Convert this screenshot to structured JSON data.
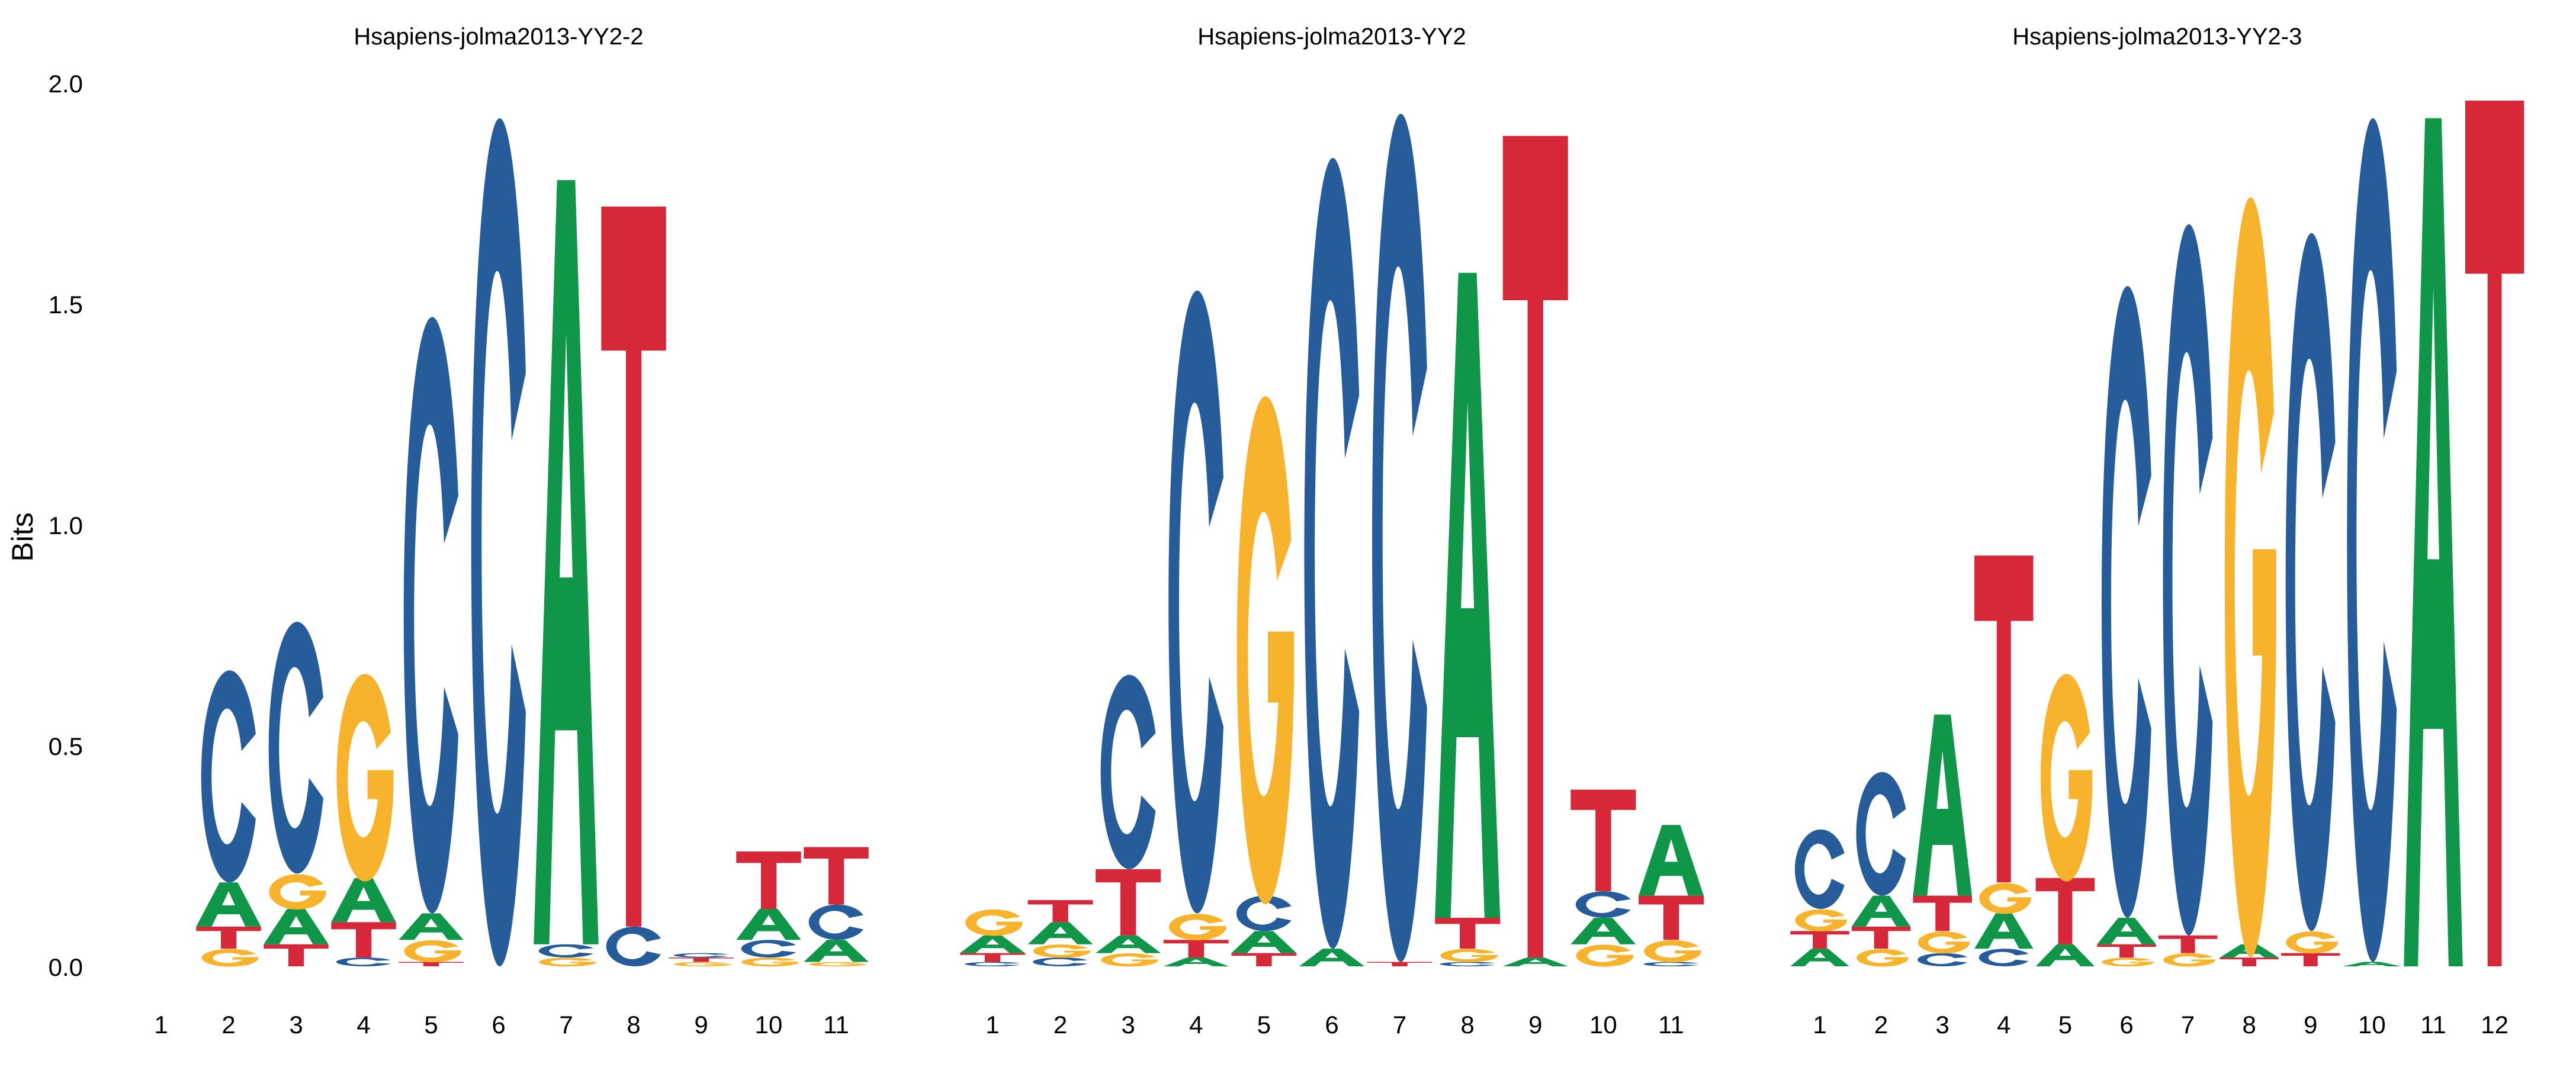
{
  "figure": {
    "ylabel": "Bits",
    "yticks": [
      0,
      0.5,
      1,
      1.5,
      2
    ],
    "ylim": [
      0,
      2
    ]
  },
  "colors": {
    "A": "#109648",
    "C": "#255C99",
    "G": "#F7B32B",
    "T": "#D62839"
  },
  "chart_data": [
    {
      "type": "sequence_logo",
      "title": "Hsapiens-jolma2013-YY2-2",
      "ylabel": "Bits",
      "ylim": [
        0,
        2
      ],
      "positions": [
        1,
        2,
        3,
        4,
        5,
        6,
        7,
        8,
        9,
        10,
        11
      ],
      "stacks": [
        [],
        [
          [
            "G",
            0.04
          ],
          [
            "T",
            0.05
          ],
          [
            "A",
            0.1
          ],
          [
            "C",
            0.48
          ]
        ],
        [
          [
            "T",
            0.05
          ],
          [
            "A",
            0.08
          ],
          [
            "G",
            0.08
          ],
          [
            "C",
            0.57
          ]
        ],
        [
          [
            "C",
            0.02
          ],
          [
            "T",
            0.08
          ],
          [
            "A",
            0.1
          ],
          [
            "G",
            0.47
          ]
        ],
        [
          [
            "T",
            0.01
          ],
          [
            "G",
            0.05
          ],
          [
            "A",
            0.06
          ],
          [
            "C",
            1.35
          ]
        ],
        [
          [
            "C",
            1.92
          ]
        ],
        [
          [
            "G",
            0.02
          ],
          [
            "C",
            0.03
          ],
          [
            "A",
            1.73
          ]
        ],
        [
          [
            "C",
            0.09
          ],
          [
            "T",
            1.63
          ]
        ],
        [
          [
            "G",
            0.01
          ],
          [
            "T",
            0.01
          ],
          [
            "C",
            0.01
          ]
        ],
        [
          [
            "G",
            0.02
          ],
          [
            "C",
            0.04
          ],
          [
            "A",
            0.07
          ],
          [
            "T",
            0.13
          ]
        ],
        [
          [
            "G",
            0.01
          ],
          [
            "A",
            0.05
          ],
          [
            "C",
            0.08
          ],
          [
            "T",
            0.13
          ]
        ]
      ]
    },
    {
      "type": "sequence_logo",
      "title": "Hsapiens-jolma2013-YY2",
      "ylabel": "Bits",
      "ylim": [
        0,
        2
      ],
      "positions": [
        1,
        2,
        3,
        4,
        5,
        6,
        7,
        8,
        9,
        10,
        11
      ],
      "stacks": [
        [
          [
            "C",
            0.01
          ],
          [
            "T",
            0.02
          ],
          [
            "A",
            0.04
          ],
          [
            "G",
            0.06
          ]
        ],
        [
          [
            "C",
            0.02
          ],
          [
            "G",
            0.03
          ],
          [
            "A",
            0.05
          ],
          [
            "T",
            0.05
          ]
        ],
        [
          [
            "G",
            0.03
          ],
          [
            "A",
            0.04
          ],
          [
            "T",
            0.15
          ],
          [
            "C",
            0.44
          ]
        ],
        [
          [
            "A",
            0.02
          ],
          [
            "T",
            0.04
          ],
          [
            "G",
            0.06
          ],
          [
            "C",
            1.41
          ]
        ],
        [
          [
            "T",
            0.03
          ],
          [
            "A",
            0.05
          ],
          [
            "C",
            0.08
          ],
          [
            "G",
            1.15
          ]
        ],
        [
          [
            "A",
            0.04
          ],
          [
            "C",
            1.79
          ]
        ],
        [
          [
            "T",
            0.01
          ],
          [
            "C",
            1.92
          ]
        ],
        [
          [
            "C",
            0.01
          ],
          [
            "G",
            0.03
          ],
          [
            "T",
            0.07
          ],
          [
            "A",
            1.46
          ]
        ],
        [
          [
            "A",
            0.02
          ],
          [
            "T",
            1.86
          ]
        ],
        [
          [
            "G",
            0.05
          ],
          [
            "A",
            0.06
          ],
          [
            "C",
            0.06
          ],
          [
            "T",
            0.23
          ]
        ],
        [
          [
            "C",
            0.01
          ],
          [
            "G",
            0.05
          ],
          [
            "T",
            0.1
          ],
          [
            "A",
            0.16
          ]
        ]
      ]
    },
    {
      "type": "sequence_logo",
      "title": "Hsapiens-jolma2013-YY2-3",
      "ylabel": "Bits",
      "ylim": [
        0,
        2
      ],
      "positions": [
        1,
        2,
        3,
        4,
        5,
        6,
        7,
        8,
        9,
        10,
        11,
        12
      ],
      "stacks": [
        [
          [
            "A",
            0.04
          ],
          [
            "T",
            0.04
          ],
          [
            "G",
            0.05
          ],
          [
            "C",
            0.18
          ]
        ],
        [
          [
            "G",
            0.04
          ],
          [
            "T",
            0.05
          ],
          [
            "A",
            0.07
          ],
          [
            "C",
            0.28
          ]
        ],
        [
          [
            "C",
            0.03
          ],
          [
            "G",
            0.05
          ],
          [
            "T",
            0.08
          ],
          [
            "A",
            0.41
          ]
        ],
        [
          [
            "C",
            0.04
          ],
          [
            "A",
            0.08
          ],
          [
            "G",
            0.07
          ],
          [
            "T",
            0.74
          ]
        ],
        [
          [
            "A",
            0.05
          ],
          [
            "T",
            0.15
          ],
          [
            "G",
            0.47
          ]
        ],
        [
          [
            "G",
            0.02
          ],
          [
            "T",
            0.03
          ],
          [
            "A",
            0.06
          ],
          [
            "C",
            1.43
          ]
        ],
        [
          [
            "G",
            0.03
          ],
          [
            "T",
            0.04
          ],
          [
            "C",
            1.61
          ]
        ],
        [
          [
            "T",
            0.02
          ],
          [
            "A",
            0.03
          ],
          [
            "G",
            1.72
          ]
        ],
        [
          [
            "T",
            0.03
          ],
          [
            "G",
            0.05
          ],
          [
            "C",
            1.58
          ]
        ],
        [
          [
            "A",
            0.01
          ],
          [
            "C",
            1.91
          ]
        ],
        [
          [
            "A",
            1.92
          ]
        ],
        [
          [
            "T",
            1.96
          ]
        ]
      ]
    }
  ]
}
